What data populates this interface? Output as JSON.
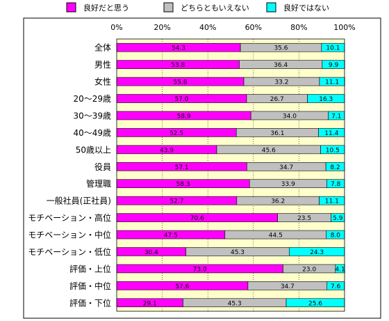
{
  "chart_data": {
    "type": "bar",
    "orientation": "horizontal",
    "stacked": "percent",
    "categories": [
      "全体",
      "男性",
      "女性",
      "20～29歳",
      "30～39歳",
      "40～49歳",
      "50歳以上",
      "役員",
      "管理職",
      "一般社員(正社員)",
      "モチベーション・高位",
      "モチベーション・中位",
      "モチベーション・低位",
      "評価・上位",
      "評価・中位",
      "評価・下位"
    ],
    "series": [
      {
        "name": "良好だと思う",
        "color": "#ff00ff",
        "values": [
          54.3,
          53.8,
          55.8,
          57.0,
          58.9,
          52.5,
          43.9,
          57.1,
          58.3,
          52.7,
          70.6,
          47.5,
          30.4,
          73.0,
          57.6,
          29.1
        ]
      },
      {
        "name": "どちらともいえない",
        "color": "#c0c0c0",
        "values": [
          35.6,
          36.4,
          33.2,
          26.7,
          34.0,
          36.1,
          45.6,
          34.7,
          33.9,
          36.2,
          23.5,
          44.5,
          45.3,
          23.0,
          34.7,
          45.3
        ]
      },
      {
        "name": "良好ではない",
        "color": "#00ffff",
        "values": [
          10.1,
          9.9,
          11.1,
          16.3,
          7.1,
          11.4,
          10.5,
          8.2,
          7.8,
          11.1,
          5.9,
          8.0,
          24.3,
          4.1,
          7.6,
          25.6
        ]
      }
    ],
    "value_labels": [
      [
        "54.3",
        "35.6",
        "10.1"
      ],
      [
        "53.8",
        "36.4",
        "9.9"
      ],
      [
        "55.8",
        "33.2",
        "11.1"
      ],
      [
        "57.0",
        "26.7",
        "16.3"
      ],
      [
        "58.9",
        "34.0",
        "7.1"
      ],
      [
        "52.5",
        "36.1",
        "11.4"
      ],
      [
        "43.9",
        "45.6",
        "10.5"
      ],
      [
        "57.1",
        "34.7",
        "8.2"
      ],
      [
        "58.3",
        "33.9",
        "7.8"
      ],
      [
        "52.7",
        "36.2",
        "11.1"
      ],
      [
        "70.6",
        "23.5",
        "5.9"
      ],
      [
        "47.5",
        "44.5",
        "8.0"
      ],
      [
        "30.4",
        "45.3",
        "24.3"
      ],
      [
        "73.0",
        "23.0",
        "4.1"
      ],
      [
        "57.6",
        "34.7",
        "7.6"
      ],
      [
        "29.1",
        "45.3",
        "25.6"
      ]
    ],
    "xticks": [
      "0%",
      "20%",
      "40%",
      "60%",
      "80%",
      "100%"
    ],
    "xlim": [
      0,
      100
    ],
    "grid": true,
    "plot_background": "#ffffcc",
    "legend_position": "top"
  }
}
